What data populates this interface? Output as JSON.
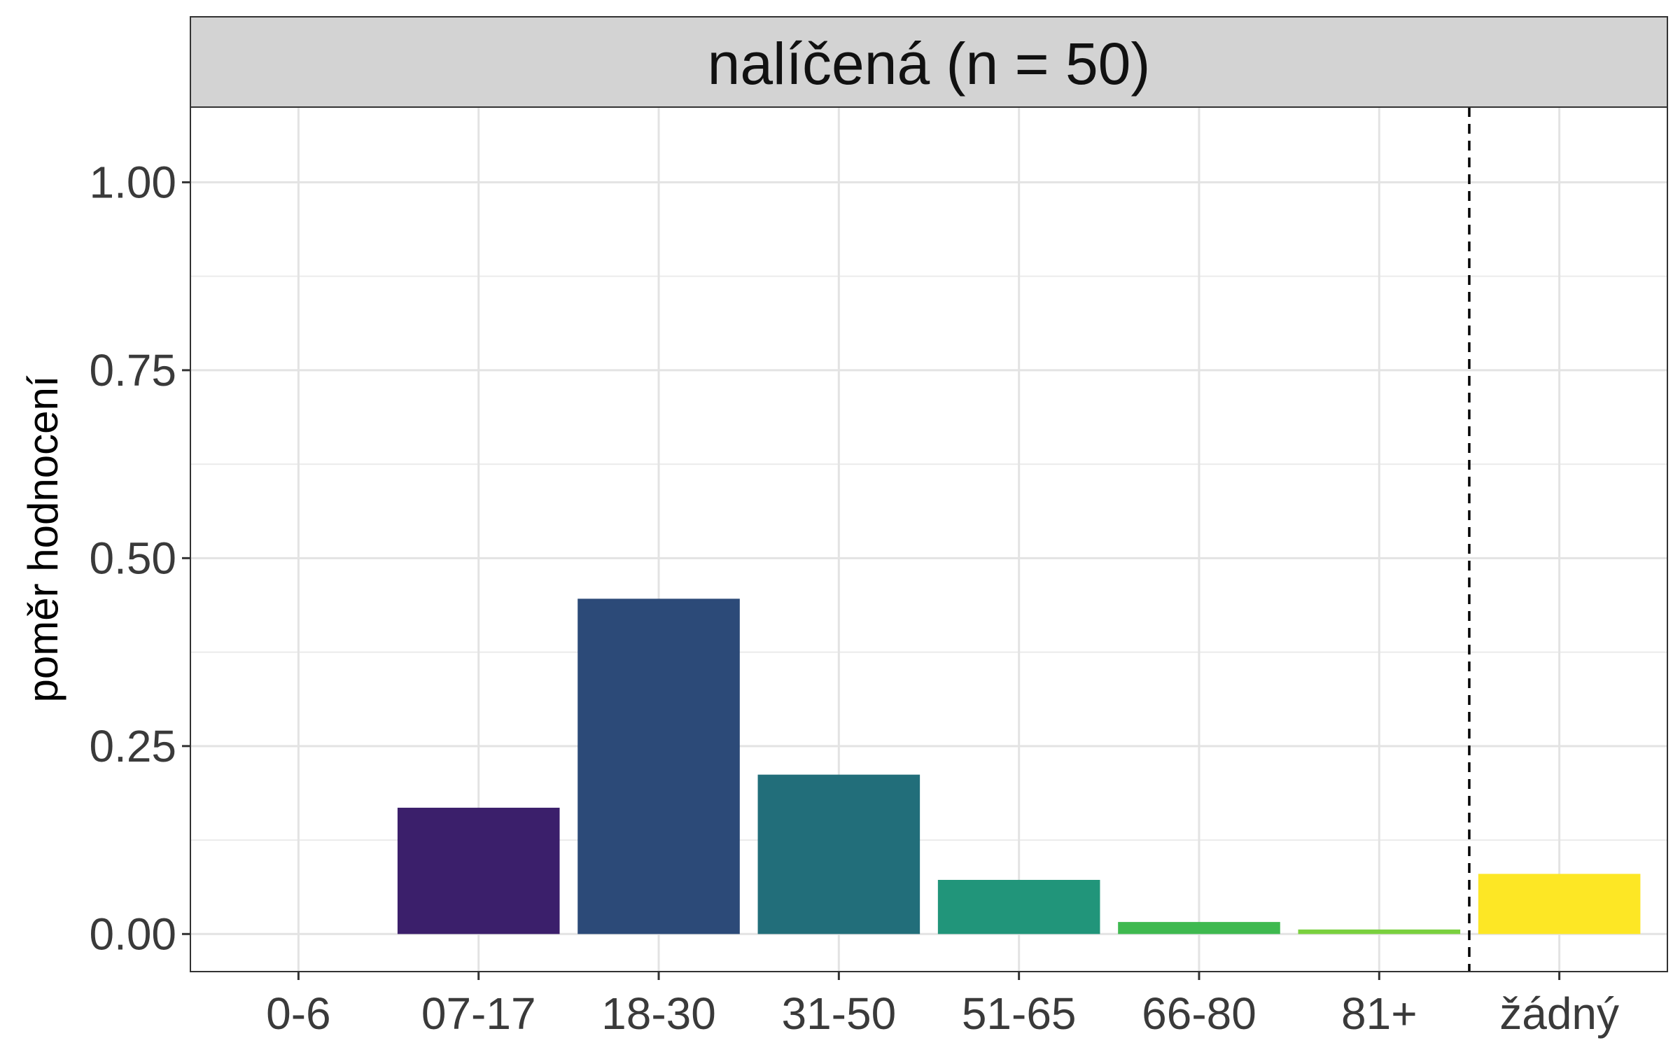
{
  "chart_data": {
    "type": "bar",
    "panel_title": "nalíčená (n = 50)",
    "xlabel": "",
    "ylabel": "poměr hodnocení",
    "categories": [
      "0-6",
      "07-17",
      "18-30",
      "31-50",
      "51-65",
      "66-80",
      "81+",
      "žádný"
    ],
    "values": [
      0.0,
      0.168,
      0.446,
      0.212,
      0.072,
      0.016,
      0.006,
      0.08
    ],
    "colors": [
      "#440154",
      "#3B1F6B",
      "#2C4A78",
      "#226E7A",
      "#21957A",
      "#3EB94F",
      "#7AD03E",
      "#FDE725"
    ],
    "ylim": [
      -0.05,
      1.1
    ],
    "yticks": [
      "0.00",
      "0.25",
      "0.50",
      "0.75",
      "1.00"
    ],
    "ytick_values": [
      0,
      0.25,
      0.5,
      0.75,
      1.0
    ],
    "y_minor_values": [
      0.125,
      0.375,
      0.625,
      0.875
    ],
    "separator_after_index": 6,
    "grid": true,
    "legend": "none"
  }
}
